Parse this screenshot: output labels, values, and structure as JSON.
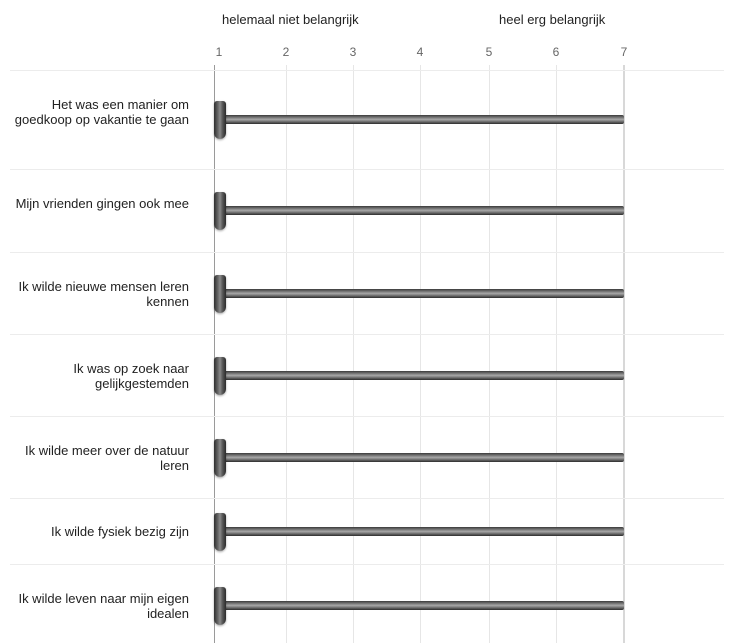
{
  "scale": {
    "left_anchor": "helemaal niet belangrijk",
    "right_anchor": "heel erg belangrijk",
    "points": [
      "1",
      "2",
      "3",
      "4",
      "5",
      "6",
      "7"
    ]
  },
  "slider_colors": {
    "track": "#7c7c7c",
    "handle": "#4a4a4a"
  },
  "items": [
    {
      "label": "Het was een manier om goedkoop op vakantie te gaan",
      "value": 1
    },
    {
      "label": "Mijn vrienden gingen ook mee",
      "value": 1
    },
    {
      "label": "Ik wilde nieuwe mensen leren kennen",
      "value": 1
    },
    {
      "label": "Ik was op zoek naar gelijkgestemden",
      "value": 1
    },
    {
      "label": "Ik wilde meer over de natuur leren",
      "value": 1
    },
    {
      "label": "Ik wilde fysiek bezig zijn",
      "value": 1
    },
    {
      "label": "Ik wilde leven naar mijn eigen idealen",
      "value": 1
    }
  ]
}
